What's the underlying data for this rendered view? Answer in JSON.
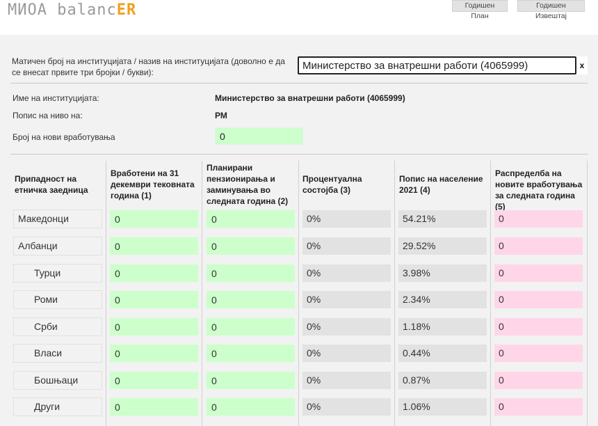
{
  "header": {
    "logo_main": "МИОА balanc",
    "logo_accent": "ER",
    "nav": {
      "annual_plan": "Годишен План",
      "annual_report": "Годишен Извештај"
    }
  },
  "form": {
    "institution_prompt": "Матичен број на институцијата / назив на институцијата (доволно е да се внесат првите три бројки / букви):",
    "institution_value": "Министерство за внатрешни работи (4065999)",
    "clear_label": "x",
    "name_label": "Име на институцијата:",
    "name_value": "Министерство за внатрешни работи (4065999)",
    "level_label": "Попис на ниво на:",
    "level_value": "РМ",
    "new_emp_label": "Број на нови вработувања",
    "new_emp_value": "0"
  },
  "table": {
    "headers": [
      "Припадност на етничка заедница",
      "Вработени на 31 декември тековната година (1)",
      "Планирани пензионирања и заминувања во следната година (2)",
      "Процентуална состојба (3)",
      "Попис на население 2021 (4)",
      "Распределба на новите вработувања за следната година (5)"
    ],
    "rows": [
      {
        "ethnic": "Македонци",
        "employed": "0",
        "planned": "0",
        "percent": "0%",
        "census": "54.21%",
        "distribution": "0"
      },
      {
        "ethnic": "Албанци",
        "employed": "0",
        "planned": "0",
        "percent": "0%",
        "census": "29.52%",
        "distribution": "0"
      },
      {
        "ethnic": "Турци",
        "employed": "0",
        "planned": "0",
        "percent": "0%",
        "census": "3.98%",
        "distribution": "0"
      },
      {
        "ethnic": "Роми",
        "employed": "0",
        "planned": "0",
        "percent": "0%",
        "census": "2.34%",
        "distribution": "0"
      },
      {
        "ethnic": "Срби",
        "employed": "0",
        "planned": "0",
        "percent": "0%",
        "census": "1.18%",
        "distribution": "0"
      },
      {
        "ethnic": "Власи",
        "employed": "0",
        "planned": "0",
        "percent": "0%",
        "census": "0.44%",
        "distribution": "0"
      },
      {
        "ethnic": "Бошњаци",
        "employed": "0",
        "planned": "0",
        "percent": "0%",
        "census": "0.87%",
        "distribution": "0"
      },
      {
        "ethnic": "Други",
        "employed": "0",
        "planned": "0",
        "percent": "0%",
        "census": "1.06%",
        "distribution": "0"
      }
    ]
  },
  "colors": {
    "accent": "#f0a020",
    "input_green": "#ccffcc",
    "readonly_gray": "#e2e2e2",
    "output_pink": "#ffd6e8"
  }
}
